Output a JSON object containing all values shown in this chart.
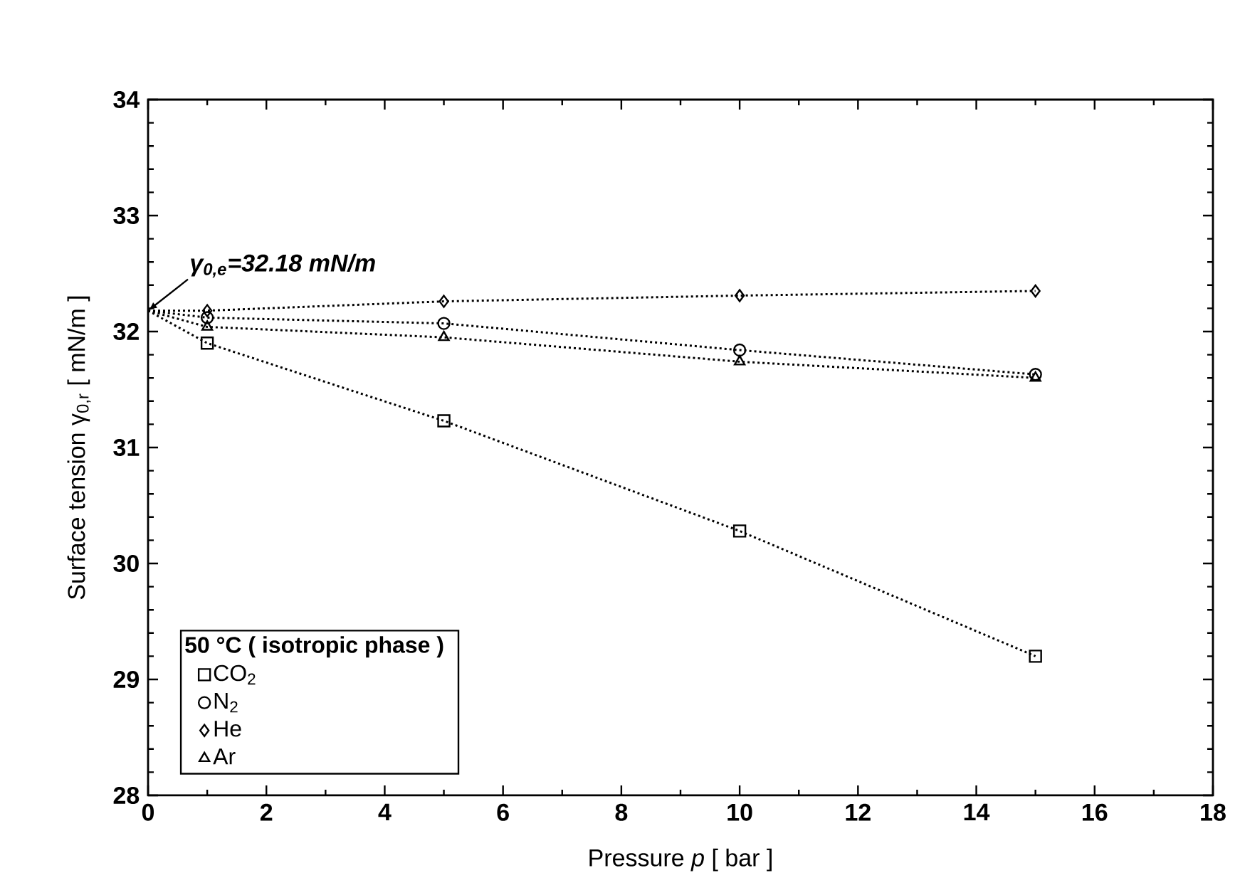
{
  "chart_data": {
    "type": "scatter",
    "xlabel": "Pressure *p* [ bar ]",
    "ylabel": "Surface tension γ$_{0,r}$ [ mN/m ]",
    "legend_title": "50 °C ( isotropic phase )",
    "xlim": [
      0,
      18
    ],
    "ylim": [
      28,
      34
    ],
    "xticks": [
      0,
      2,
      4,
      6,
      8,
      10,
      12,
      14,
      16,
      18
    ],
    "yticks": [
      28,
      29,
      30,
      31,
      32,
      33,
      34
    ],
    "grid": false,
    "legend": "bottom left",
    "annotations": [
      {
        "text": "γ$_{0,e}$=32.18 mN/m",
        "x": 0,
        "y": 32.18
      }
    ],
    "series": [
      {
        "name": "CO$_{2}$",
        "marker": "square",
        "color": "#000000",
        "x": [
          1,
          5,
          10,
          15
        ],
        "values": [
          31.9,
          31.23,
          30.28,
          29.2
        ]
      },
      {
        "name": "N$_{2}$",
        "marker": "circle",
        "color": "#000000",
        "x": [
          1,
          5,
          10,
          15
        ],
        "values": [
          32.12,
          32.07,
          31.84,
          31.63
        ]
      },
      {
        "name": "He",
        "marker": "diamond",
        "color": "#000000",
        "x": [
          1,
          5,
          10,
          15
        ],
        "values": [
          32.18,
          32.26,
          32.31,
          32.35
        ]
      },
      {
        "name": "Ar",
        "marker": "triangle",
        "color": "#000000",
        "x": [
          1,
          5,
          10,
          15
        ],
        "values": [
          32.04,
          31.95,
          31.74,
          31.6
        ]
      },
      {
        "type": "line",
        "line_style": "dotted",
        "marker": "none",
        "color": "#000000",
        "x": [
          0,
          1,
          5,
          10,
          15
        ],
        "values": [
          32.18,
          31.9,
          31.23,
          30.28,
          29.2
        ]
      },
      {
        "type": "line",
        "line_style": "dotted",
        "marker": "none",
        "color": "#000000",
        "x": [
          0,
          1,
          5,
          10,
          15
        ],
        "values": [
          32.18,
          32.12,
          32.07,
          31.84,
          31.63
        ]
      },
      {
        "type": "line",
        "line_style": "dotted",
        "marker": "none",
        "color": "#000000",
        "x": [
          0,
          1,
          5,
          10,
          15
        ],
        "values": [
          32.18,
          32.18,
          32.26,
          32.31,
          32.35
        ]
      },
      {
        "type": "line",
        "line_style": "dotted",
        "marker": "none",
        "color": "#000000",
        "x": [
          0,
          1,
          5,
          10,
          15
        ],
        "values": [
          32.18,
          32.04,
          31.95,
          31.74,
          31.6
        ]
      }
    ]
  }
}
